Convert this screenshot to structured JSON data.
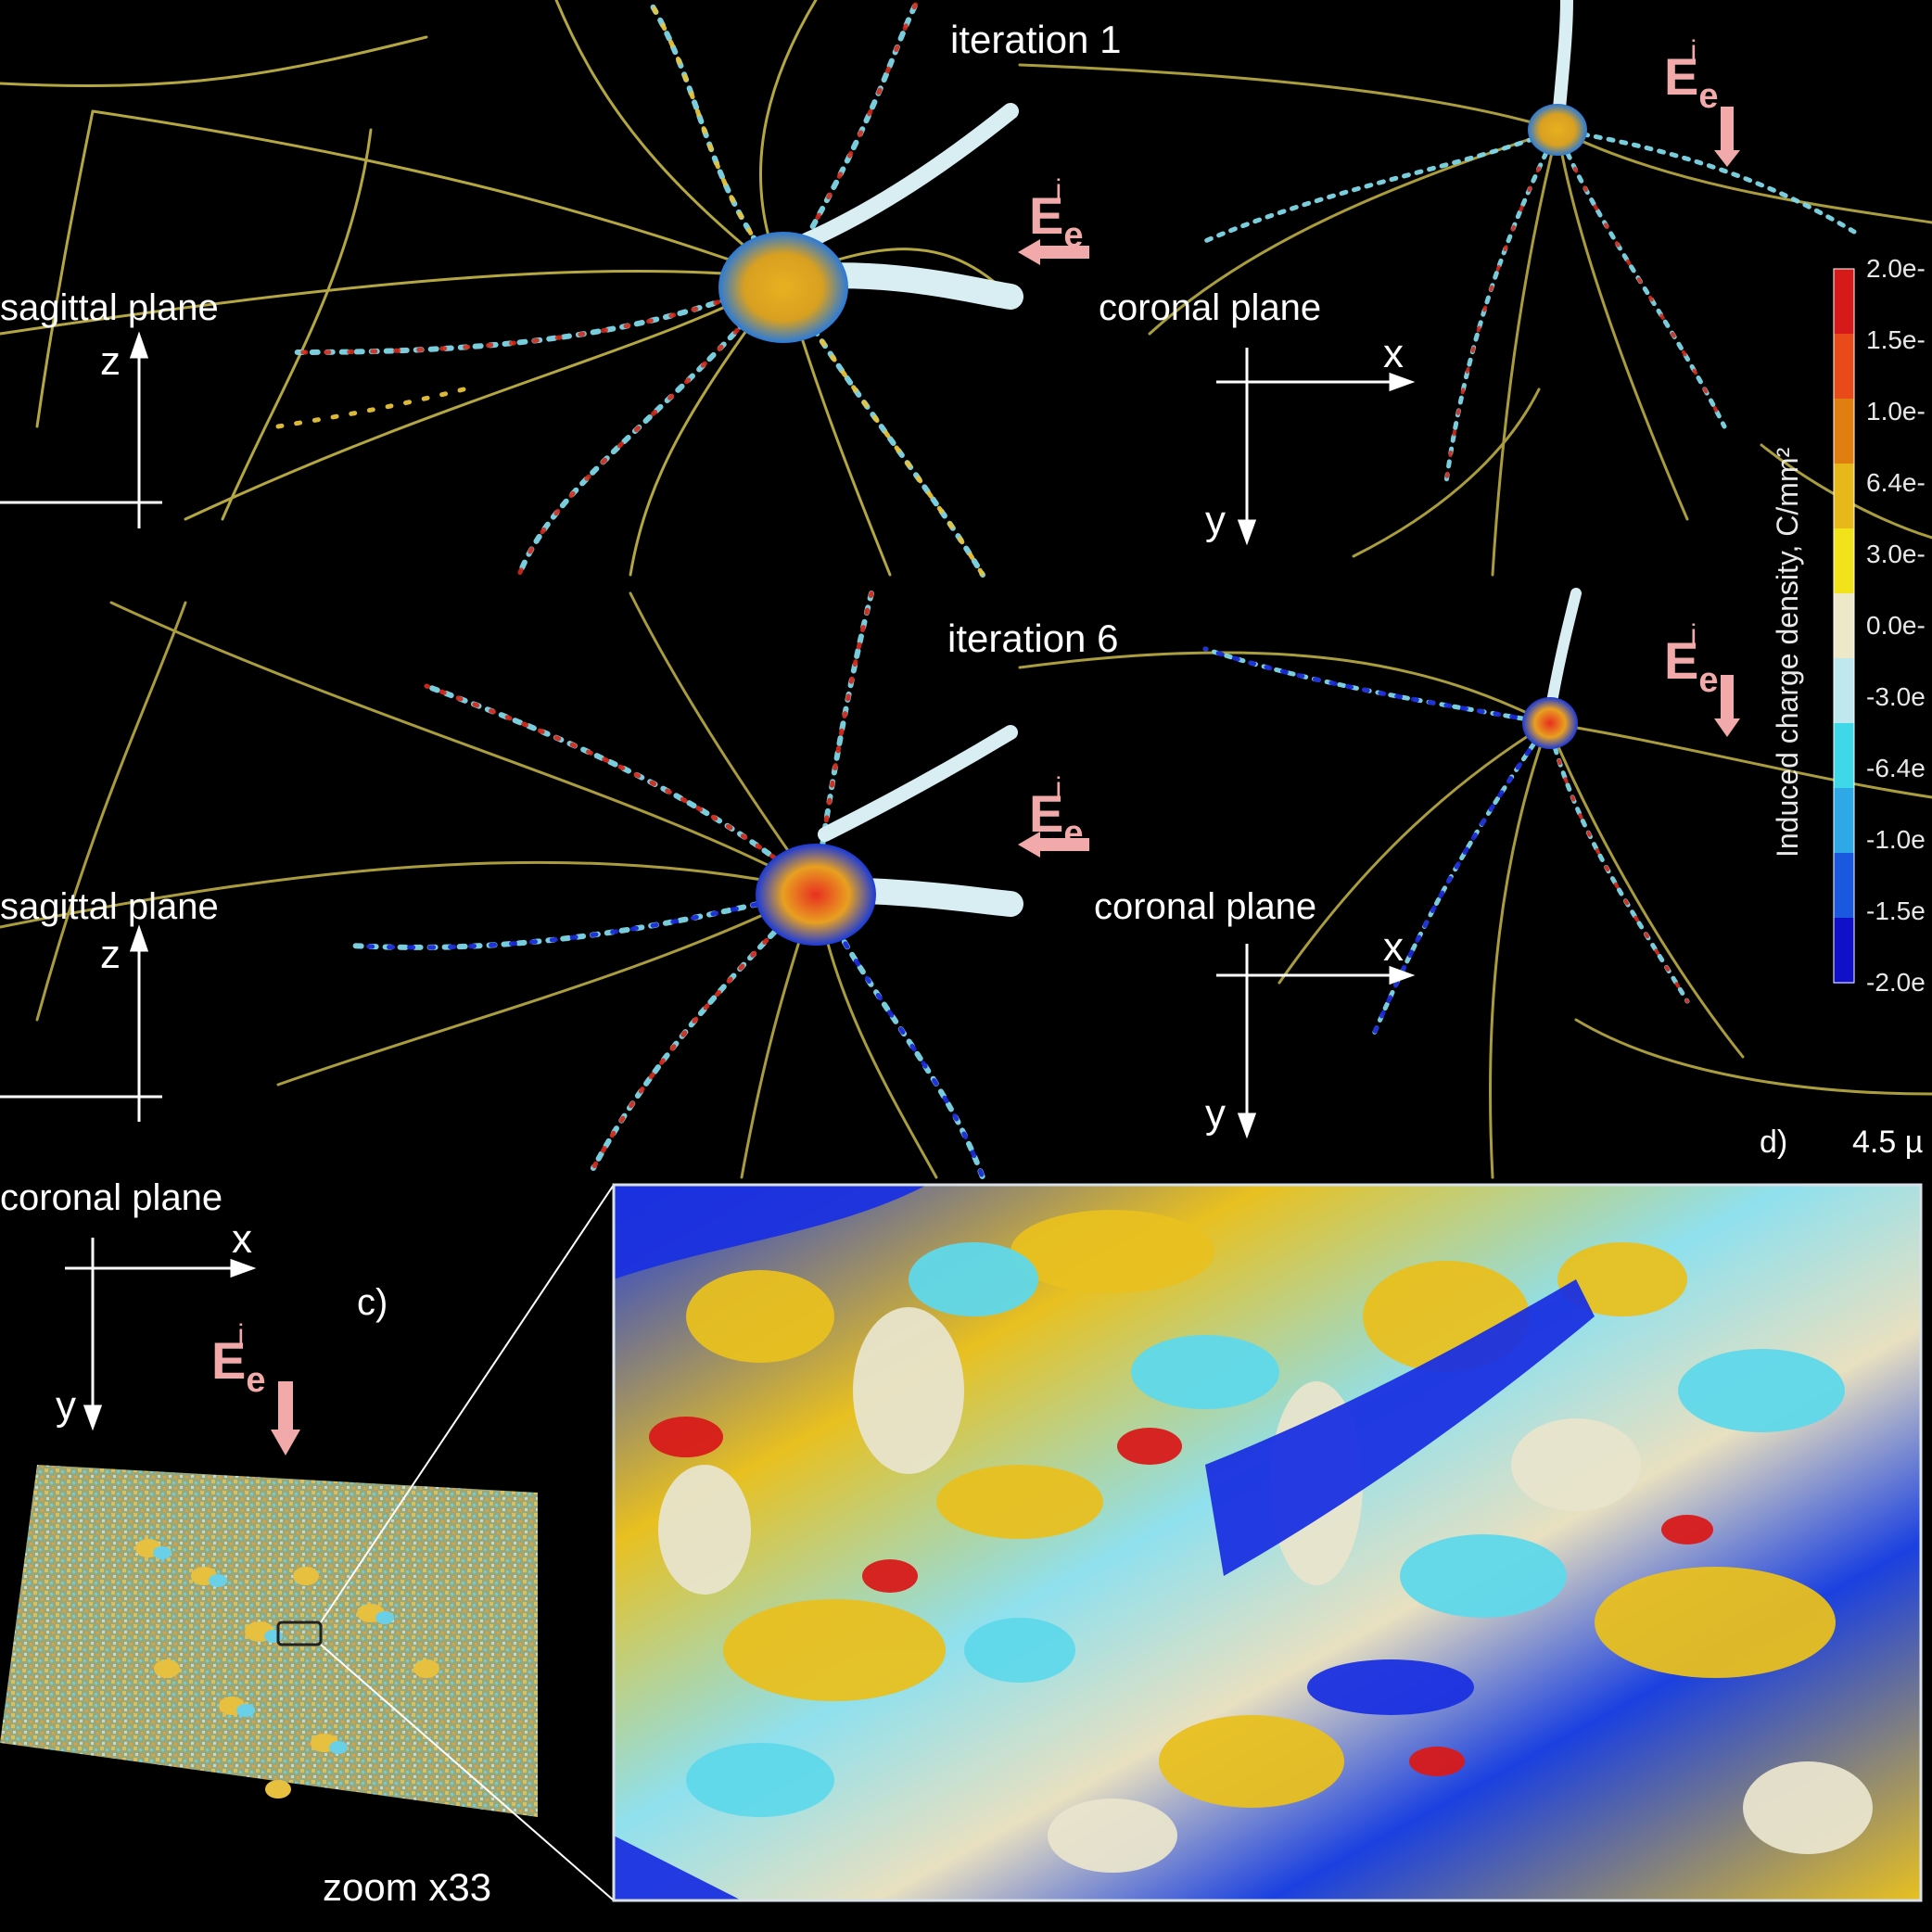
{
  "panels": {
    "top": {
      "iteration_label": "iteration 1",
      "left_plane": "sagittal plane",
      "right_plane": "coronal plane",
      "left_axis": "z",
      "right_axis_x": "x",
      "right_axis_y": "y",
      "field_E": "E",
      "field_sub": "e",
      "field_sup": "i"
    },
    "middle": {
      "iteration_label": "iteration 6",
      "left_plane": "sagittal plane",
      "right_plane": "coronal plane",
      "left_axis": "z",
      "right_axis_x": "x",
      "right_axis_y": "y",
      "field_E": "E",
      "field_sub": "e",
      "field_sup": "i"
    },
    "bottom": {
      "plane": "coronal plane",
      "axis_x": "x",
      "axis_y": "y",
      "panel_letter": "c)",
      "zoom_label": "zoom x33",
      "field_E": "E",
      "field_sub": "e",
      "field_sup": "i"
    },
    "d_label": "d)",
    "scale_label": "4.5 µ"
  },
  "colorbar": {
    "title": "Induced charge density, C/mm²",
    "ticks": [
      "2.0e-",
      "1.5e-",
      "1.0e-",
      "6.4e-",
      "3.0e-",
      "0.0e-",
      "-3.0e",
      "-6.4e",
      "-1.0e",
      "-1.5e",
      "-2.0e"
    ],
    "colors": [
      "#d61a1a",
      "#e84a1a",
      "#e07f10",
      "#e8b81a",
      "#f2e21a",
      "#ece8c8",
      "#bfe8ee",
      "#3fd8e8",
      "#2fa8e8",
      "#1a58e0",
      "#1010c8"
    ]
  },
  "colors": {
    "background": "#000000",
    "field_arrow": "#f2a9a9",
    "neuron_yellow": "#e8c23a",
    "neuron_cyan": "#7fd8e8",
    "neuron_red": "#d42a1a",
    "neuron_blue": "#1a2ad8"
  }
}
